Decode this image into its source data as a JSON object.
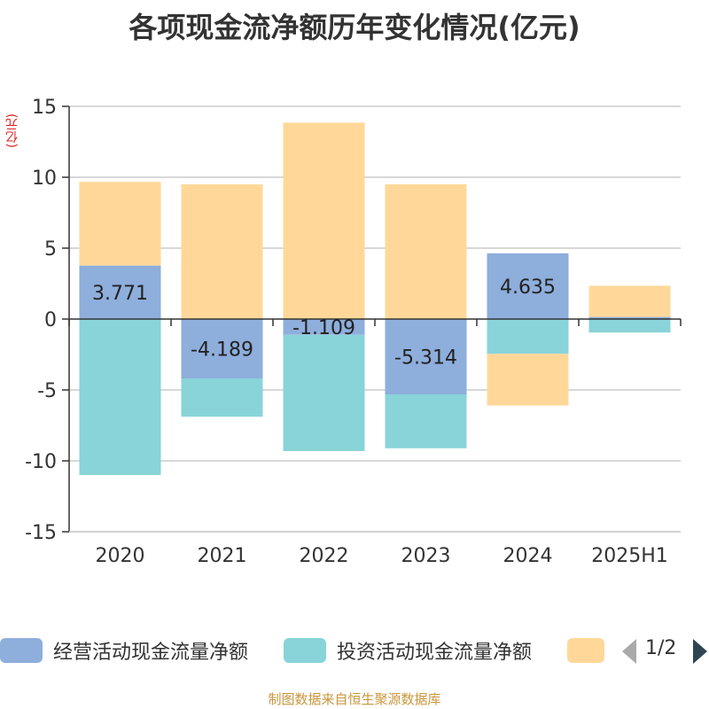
{
  "title": "各项现金流净额历年变化情况(亿元)",
  "unit_label": "(亿元)",
  "source": "制图数据来自恒生聚源数据库",
  "legend": {
    "items": [
      {
        "name": "经营活动现金流量净额",
        "color": "#8eaedc"
      },
      {
        "name": "投资活动现金流量净额",
        "color": "#88d4d8"
      },
      {
        "name": "",
        "color": "#ffd899"
      }
    ],
    "pager": "1/2"
  },
  "chart_data": {
    "type": "bar",
    "stacked": true,
    "categories": [
      "2020",
      "2021",
      "2022",
      "2023",
      "2024",
      "2025H1"
    ],
    "ylim": [
      -15,
      15
    ],
    "yticks": [
      15,
      10,
      5,
      0,
      -5,
      -10,
      -15
    ],
    "grid": true,
    "legend_position": "bottom",
    "series": [
      {
        "name": "经营活动现金流量净额",
        "color": "#8eaedc",
        "values": [
          3.771,
          -4.189,
          -1.109,
          -5.314,
          4.635,
          0.15
        ],
        "labels": [
          "3.771",
          "-4.189",
          "-1.109",
          "-5.314",
          "4.635",
          ""
        ]
      },
      {
        "name": "投资活动现金流量净额",
        "color": "#88d4d8",
        "values": [
          -11.0,
          -2.7,
          -8.2,
          -3.8,
          -2.45,
          -0.95
        ]
      },
      {
        "name": "",
        "color": "#ffd899",
        "values": [
          5.9,
          9.5,
          13.85,
          9.5,
          -3.65,
          2.2
        ]
      }
    ]
  }
}
